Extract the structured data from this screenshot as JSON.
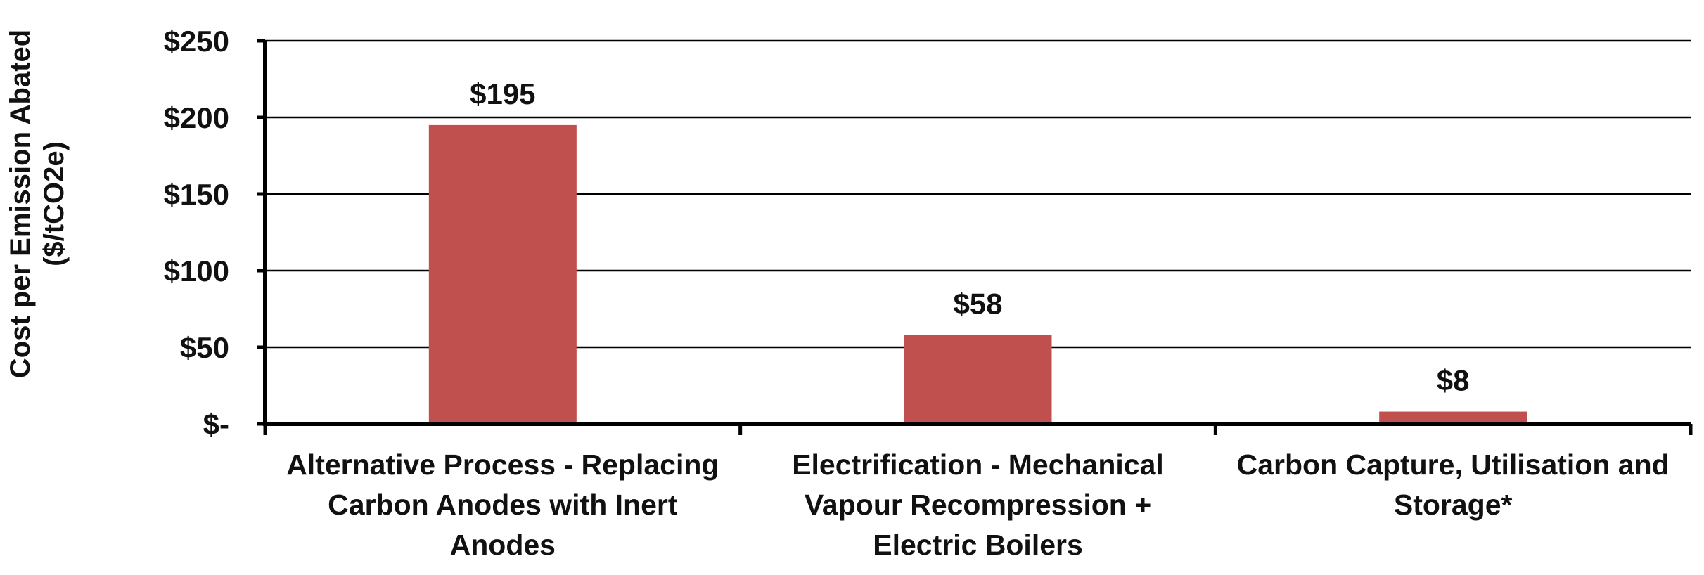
{
  "chart_data": {
    "type": "bar",
    "title": "",
    "ylabel_lines": [
      "Cost per Emission Abated",
      "($/tCO2e)"
    ],
    "xlabel": "",
    "categories": [
      [
        "Alternative Process - Replacing",
        "Carbon Anodes with Inert",
        "Anodes"
      ],
      [
        "Electrification - Mechanical",
        "Vapour Recompression +",
        "Electric Boilers"
      ],
      [
        "Carbon Capture, Utilisation and",
        "Storage*"
      ]
    ],
    "values": [
      195,
      58,
      8
    ],
    "data_labels": [
      "$195",
      "$58",
      "$8"
    ],
    "ylim": [
      0,
      250
    ],
    "yticks": [
      0,
      50,
      100,
      150,
      200,
      250
    ],
    "ytick_labels": [
      "$-",
      "$50",
      "$100",
      "$150",
      "$200",
      "$250"
    ],
    "grid": true,
    "legend": "none",
    "bar_color": "#c0504d",
    "grid_color": "#000000"
  }
}
